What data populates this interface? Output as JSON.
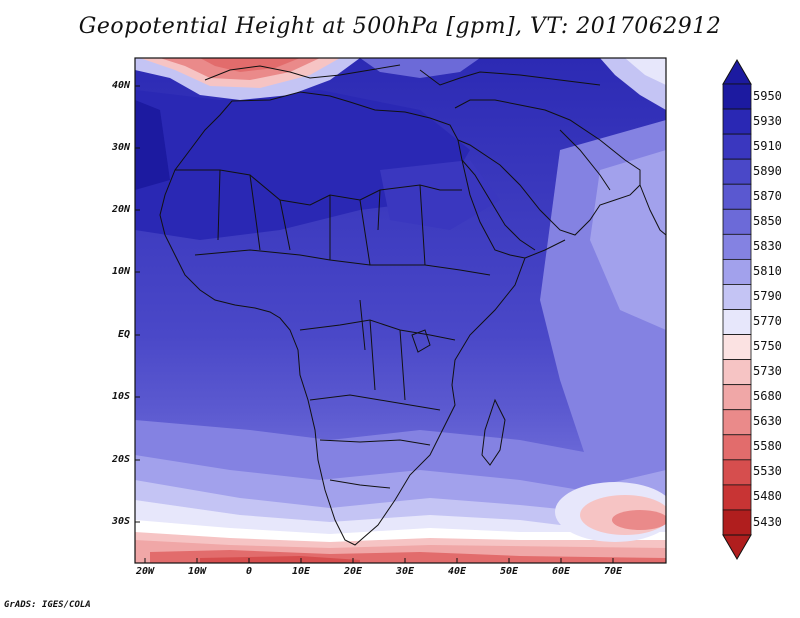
{
  "title": "Geopotential Height at 500hPa [gpm], VT: 2017062912",
  "credit": "GrADS: IGES/COLA",
  "lat_labels": [
    "40N",
    "30N",
    "20N",
    "10N",
    "EQ",
    "10S",
    "20S",
    "30S"
  ],
  "lon_labels": [
    "20W",
    "10W",
    "0",
    "10E",
    "20E",
    "30E",
    "40E",
    "50E",
    "60E",
    "70E"
  ],
  "colorbar": {
    "levels": [
      "5950",
      "5930",
      "5910",
      "5890",
      "5870",
      "5850",
      "5830",
      "5810",
      "5790",
      "5770",
      "5750",
      "5730",
      "5680",
      "5630",
      "5580",
      "5530",
      "5480",
      "5430"
    ],
    "colors": [
      "#1c1aa0",
      "#2a28b4",
      "#3a37bf",
      "#4a48c8",
      "#5a58d0",
      "#6c6ad8",
      "#8482e2",
      "#a2a1ec",
      "#c4c4f4",
      "#e7e7fb",
      "#fbe2e2",
      "#f6c4c4",
      "#f0a7a7",
      "#ea8a8a",
      "#e26c6c",
      "#d64e4e",
      "#c83434",
      "#b01e1e"
    ]
  },
  "map": {
    "projection": "lat-lon",
    "lat_range": [
      "37S",
      "45N"
    ],
    "lon_range": [
      "22W",
      "79E"
    ],
    "field": "Geopotential Height at 500hPa"
  }
}
